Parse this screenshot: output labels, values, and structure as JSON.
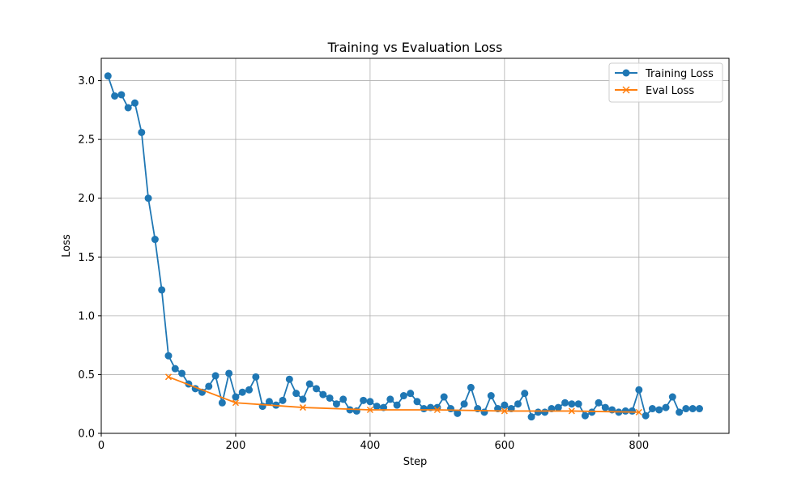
{
  "chart_data": {
    "type": "line",
    "title": "Training vs Evaluation Loss",
    "xlabel": "Step",
    "ylabel": "Loss",
    "xlim": [
      0,
      934
    ],
    "ylim": [
      0,
      3.19
    ],
    "xticks": [
      0,
      200,
      400,
      600,
      800
    ],
    "yticks": [
      0.0,
      0.5,
      1.0,
      1.5,
      2.0,
      2.5,
      3.0
    ],
    "xtick_labels": [
      "0",
      "200",
      "400",
      "600",
      "800"
    ],
    "ytick_labels": [
      "0.0",
      "0.5",
      "1.0",
      "1.5",
      "2.0",
      "2.5",
      "3.0"
    ],
    "grid": true,
    "legend_position": "top-right",
    "series": [
      {
        "name": "Training Loss",
        "color": "#1f77b4",
        "marker": "circle",
        "x": [
          10,
          20,
          30,
          40,
          50,
          60,
          70,
          80,
          90,
          100,
          110,
          120,
          130,
          140,
          150,
          160,
          170,
          180,
          190,
          200,
          210,
          220,
          230,
          240,
          250,
          260,
          270,
          280,
          290,
          300,
          310,
          320,
          330,
          340,
          350,
          360,
          370,
          380,
          390,
          400,
          410,
          420,
          430,
          440,
          450,
          460,
          470,
          480,
          490,
          500,
          510,
          520,
          530,
          540,
          550,
          560,
          570,
          580,
          590,
          600,
          610,
          620,
          630,
          640,
          650,
          660,
          670,
          680,
          690,
          700,
          710,
          720,
          730,
          740,
          750,
          760,
          770,
          780,
          790,
          800,
          810,
          820,
          830,
          840,
          850,
          860,
          870,
          880,
          890
        ],
        "y": [
          3.04,
          2.87,
          2.88,
          2.77,
          2.81,
          2.56,
          2.0,
          1.65,
          1.22,
          0.66,
          0.55,
          0.51,
          0.42,
          0.38,
          0.35,
          0.4,
          0.49,
          0.26,
          0.51,
          0.31,
          0.35,
          0.37,
          0.48,
          0.23,
          0.27,
          0.24,
          0.28,
          0.46,
          0.34,
          0.29,
          0.42,
          0.38,
          0.33,
          0.3,
          0.25,
          0.29,
          0.2,
          0.19,
          0.28,
          0.27,
          0.23,
          0.22,
          0.29,
          0.24,
          0.32,
          0.34,
          0.27,
          0.21,
          0.22,
          0.22,
          0.31,
          0.21,
          0.17,
          0.25,
          0.39,
          0.21,
          0.18,
          0.32,
          0.21,
          0.24,
          0.21,
          0.25,
          0.34,
          0.14,
          0.18,
          0.18,
          0.21,
          0.22,
          0.26,
          0.25,
          0.25,
          0.15,
          0.18,
          0.26,
          0.22,
          0.2,
          0.18,
          0.19,
          0.19,
          0.37,
          0.15,
          0.21,
          0.2,
          0.22,
          0.31,
          0.18,
          0.21,
          0.21,
          0.21
        ]
      },
      {
        "name": "Eval Loss",
        "color": "#ff7f0e",
        "marker": "x",
        "x": [
          100,
          200,
          300,
          400,
          500,
          600,
          700,
          800
        ],
        "y": [
          0.48,
          0.26,
          0.22,
          0.2,
          0.2,
          0.19,
          0.19,
          0.18
        ]
      }
    ]
  }
}
